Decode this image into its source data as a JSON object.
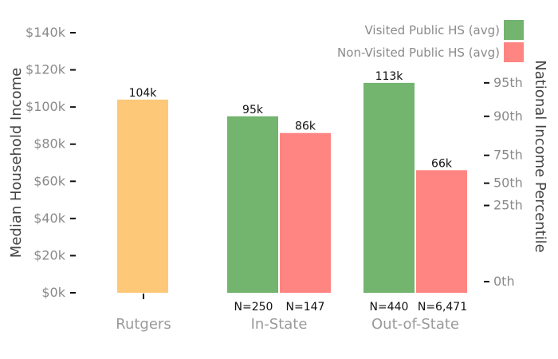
{
  "chart_data": {
    "type": "bar",
    "title": "",
    "ylabel": "Median Household Income",
    "ylabel_right": "National Income Percentile",
    "ylim": [
      0,
      140000
    ],
    "yticks": [
      {
        "value": 0,
        "label": "$0k"
      },
      {
        "value": 20000,
        "label": "$20k"
      },
      {
        "value": 40000,
        "label": "$40k"
      },
      {
        "value": 60000,
        "label": "$60k"
      },
      {
        "value": 80000,
        "label": "$80k"
      },
      {
        "value": 100000,
        "label": "$100k"
      },
      {
        "value": 120000,
        "label": "$120k"
      },
      {
        "value": 140000,
        "label": "$140k"
      }
    ],
    "yticks_right": [
      {
        "value": 6000,
        "label": "0th"
      },
      {
        "value": 47000,
        "label": "25th"
      },
      {
        "value": 59000,
        "label": "50th"
      },
      {
        "value": 74000,
        "label": "75th"
      },
      {
        "value": 95000,
        "label": "90th"
      },
      {
        "value": 113000,
        "label": "95th"
      }
    ],
    "categories": [
      "Rutgers",
      "In-State",
      "Out-of-State"
    ],
    "series": [
      {
        "name": "",
        "key": "rutgers",
        "color": "#fec879",
        "values": [
          104000,
          null,
          null
        ],
        "labels": [
          "104k",
          null,
          null
        ],
        "n": [
          null,
          null,
          null
        ]
      },
      {
        "name": "Visited Public HS (avg)",
        "key": "visited",
        "color": "#73b46e",
        "values": [
          null,
          95000,
          113000
        ],
        "labels": [
          null,
          "95k",
          "113k"
        ],
        "n": [
          null,
          "N=250",
          "N=440"
        ]
      },
      {
        "name": "Non-Visited Public HS (avg)",
        "key": "non_visited",
        "color": "#ff8582",
        "values": [
          null,
          86000,
          66000
        ],
        "labels": [
          null,
          "86k",
          "66k"
        ],
        "n": [
          null,
          "N=147",
          "N=6,471"
        ]
      }
    ],
    "legend_position": "top-right",
    "grid": false
  }
}
